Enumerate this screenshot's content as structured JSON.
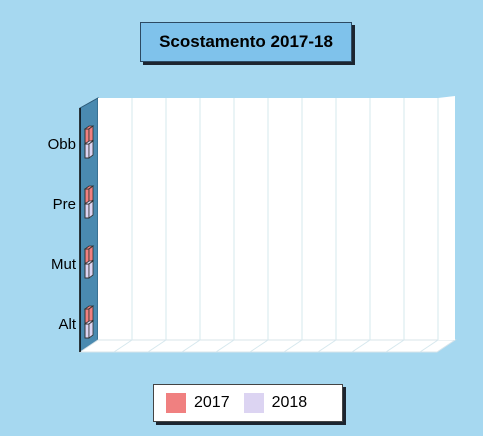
{
  "chart_data": {
    "type": "bar",
    "orientation": "horizontal",
    "three_d": true,
    "title": "Scostamento 2017-18",
    "categories": [
      "Obb",
      "Pre",
      "Mut",
      "Alt"
    ],
    "series": [
      {
        "name": "2017",
        "values": [
          0,
          0,
          0,
          0
        ],
        "color": "#f08080"
      },
      {
        "name": "2018",
        "values": [
          0,
          0,
          0,
          0
        ],
        "color": "#dcd4f2"
      }
    ],
    "xlim": [
      0,
      10
    ],
    "grid": true,
    "legend_position": "bottom"
  },
  "colors": {
    "background": "#a6d8f0",
    "title_box": "#7fc2eb",
    "left_wall": "#4a8ab0",
    "plot_area": "#ffffff"
  }
}
